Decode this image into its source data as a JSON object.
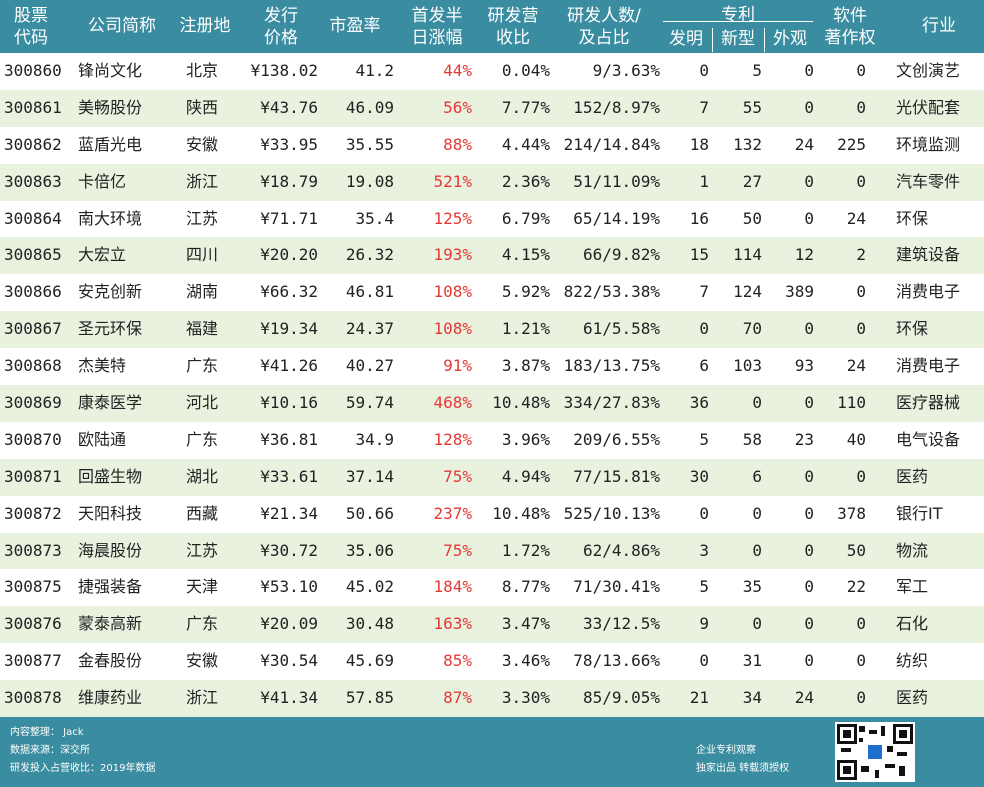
{
  "header": {
    "code": [
      "股票",
      "代码"
    ],
    "name": "公司简称",
    "location": "注册地",
    "price": [
      "发行",
      "价格"
    ],
    "pe": "市盈率",
    "first_day": [
      "首发半",
      "日涨幅"
    ],
    "rd_ratio": [
      "研发营",
      "收比"
    ],
    "rd_staff": [
      "研发人数/",
      "及占比"
    ],
    "patent": "专利",
    "invention": "发明",
    "utility": "新型",
    "design": "外观",
    "software": [
      "软件",
      "著作权"
    ],
    "industry": "行业"
  },
  "rows": [
    {
      "code": "300860",
      "name": "锋尚文化",
      "loc": "北京",
      "price": "¥138.02",
      "pe": "41.2",
      "rise": "44%",
      "rd": "0.04%",
      "staff": "9/3.63%",
      "inv": "0",
      "util": "5",
      "des": "0",
      "soft": "0",
      "ind": "文创演艺"
    },
    {
      "code": "300861",
      "name": "美畅股份",
      "loc": "陕西",
      "price": "¥43.76",
      "pe": "46.09",
      "rise": "56%",
      "rd": "7.77%",
      "staff": "152/8.97%",
      "inv": "7",
      "util": "55",
      "des": "0",
      "soft": "0",
      "ind": "光伏配套"
    },
    {
      "code": "300862",
      "name": "蓝盾光电",
      "loc": "安徽",
      "price": "¥33.95",
      "pe": "35.55",
      "rise": "88%",
      "rd": "4.44%",
      "staff": "214/14.84%",
      "inv": "18",
      "util": "132",
      "des": "24",
      "soft": "225",
      "ind": "环境监测"
    },
    {
      "code": "300863",
      "name": "卡倍亿",
      "loc": "浙江",
      "price": "¥18.79",
      "pe": "19.08",
      "rise": "521%",
      "rd": "2.36%",
      "staff": "51/11.09%",
      "inv": "1",
      "util": "27",
      "des": "0",
      "soft": "0",
      "ind": "汽车零件"
    },
    {
      "code": "300864",
      "name": "南大环境",
      "loc": "江苏",
      "price": "¥71.71",
      "pe": "35.4",
      "rise": "125%",
      "rd": "6.79%",
      "staff": "65/14.19%",
      "inv": "16",
      "util": "50",
      "des": "0",
      "soft": "24",
      "ind": "环保"
    },
    {
      "code": "300865",
      "name": "大宏立",
      "loc": "四川",
      "price": "¥20.20",
      "pe": "26.32",
      "rise": "193%",
      "rd": "4.15%",
      "staff": "66/9.82%",
      "inv": "15",
      "util": "114",
      "des": "12",
      "soft": "2",
      "ind": "建筑设备"
    },
    {
      "code": "300866",
      "name": "安克创新",
      "loc": "湖南",
      "price": "¥66.32",
      "pe": "46.81",
      "rise": "108%",
      "rd": "5.92%",
      "staff": "822/53.38%",
      "inv": "7",
      "util": "124",
      "des": "389",
      "soft": "0",
      "ind": "消费电子"
    },
    {
      "code": "300867",
      "name": "圣元环保",
      "loc": "福建",
      "price": "¥19.34",
      "pe": "24.37",
      "rise": "108%",
      "rd": "1.21%",
      "staff": "61/5.58%",
      "inv": "0",
      "util": "70",
      "des": "0",
      "soft": "0",
      "ind": "环保"
    },
    {
      "code": "300868",
      "name": "杰美特",
      "loc": "广东",
      "price": "¥41.26",
      "pe": "40.27",
      "rise": "91%",
      "rd": "3.87%",
      "staff": "183/13.75%",
      "inv": "6",
      "util": "103",
      "des": "93",
      "soft": "24",
      "ind": "消费电子"
    },
    {
      "code": "300869",
      "name": "康泰医学",
      "loc": "河北",
      "price": "¥10.16",
      "pe": "59.74",
      "rise": "468%",
      "rd": "10.48%",
      "staff": "334/27.83%",
      "inv": "36",
      "util": "0",
      "des": "0",
      "soft": "110",
      "ind": "医疗器械"
    },
    {
      "code": "300870",
      "name": "欧陆通",
      "loc": "广东",
      "price": "¥36.81",
      "pe": "34.9",
      "rise": "128%",
      "rd": "3.96%",
      "staff": "209/6.55%",
      "inv": "5",
      "util": "58",
      "des": "23",
      "soft": "40",
      "ind": "电气设备"
    },
    {
      "code": "300871",
      "name": "回盛生物",
      "loc": "湖北",
      "price": "¥33.61",
      "pe": "37.14",
      "rise": "75%",
      "rd": "4.94%",
      "staff": "77/15.81%",
      "inv": "30",
      "util": "6",
      "des": "0",
      "soft": "0",
      "ind": "医药"
    },
    {
      "code": "300872",
      "name": "天阳科技",
      "loc": "西藏",
      "price": "¥21.34",
      "pe": "50.66",
      "rise": "237%",
      "rd": "10.48%",
      "staff": "525/10.13%",
      "inv": "0",
      "util": "0",
      "des": "0",
      "soft": "378",
      "ind": "银行IT"
    },
    {
      "code": "300873",
      "name": "海晨股份",
      "loc": "江苏",
      "price": "¥30.72",
      "pe": "35.06",
      "rise": "75%",
      "rd": "1.72%",
      "staff": "62/4.86%",
      "inv": "3",
      "util": "0",
      "des": "0",
      "soft": "50",
      "ind": "物流"
    },
    {
      "code": "300875",
      "name": "捷强装备",
      "loc": "天津",
      "price": "¥53.10",
      "pe": "45.02",
      "rise": "184%",
      "rd": "8.77%",
      "staff": "71/30.41%",
      "inv": "5",
      "util": "35",
      "des": "0",
      "soft": "22",
      "ind": "军工"
    },
    {
      "code": "300876",
      "name": "蒙泰高新",
      "loc": "广东",
      "price": "¥20.09",
      "pe": "30.48",
      "rise": "163%",
      "rd": "3.47%",
      "staff": "33/12.5%",
      "inv": "9",
      "util": "0",
      "des": "0",
      "soft": "0",
      "ind": "石化"
    },
    {
      "code": "300877",
      "name": "金春股份",
      "loc": "安徽",
      "price": "¥30.54",
      "pe": "45.69",
      "rise": "85%",
      "rd": "3.46%",
      "staff": "78/13.66%",
      "inv": "0",
      "util": "31",
      "des": "0",
      "soft": "0",
      "ind": "纺织"
    },
    {
      "code": "300878",
      "name": "维康药业",
      "loc": "浙江",
      "price": "¥41.34",
      "pe": "57.85",
      "rise": "87%",
      "rd": "3.30%",
      "staff": "85/9.05%",
      "inv": "21",
      "util": "34",
      "des": "24",
      "soft": "0",
      "ind": "医药"
    }
  ],
  "footer": {
    "editor": "内容整理： Jack",
    "source": "数据来源：深交所",
    "note": "研发投入占营收比：2019年数据",
    "brand": "企业专利观察",
    "rights": "独家出品   转载须授权"
  },
  "colors": {
    "header_bg": "#3a8ca0",
    "alt_row_bg": "#e9f1df",
    "rise_text": "#e53935"
  }
}
